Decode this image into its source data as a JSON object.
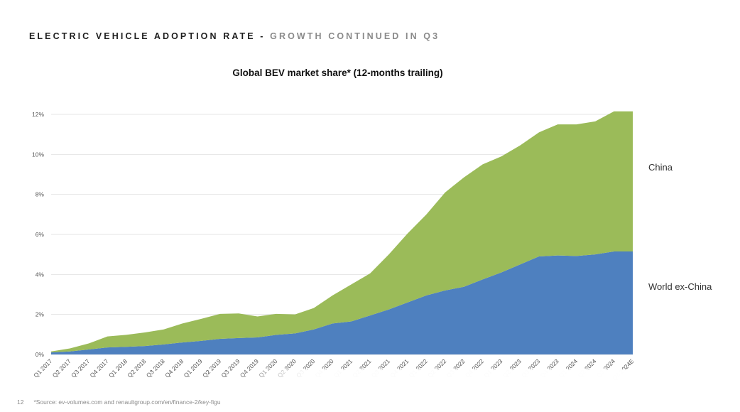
{
  "header": {
    "main": "ELECTRIC VEHICLE ADOPTION RATE - ",
    "sub": "GROWTH CONTINUED IN Q3"
  },
  "footer": {
    "page_number": "12",
    "source": "*Source: ev-volumes.com and renaultgroup.com/en/finance-2/key-figu"
  },
  "chart_data": {
    "type": "area",
    "stacked": true,
    "title": "Global BEV market share* (12-months trailing)",
    "xlabel": "",
    "ylabel": "",
    "ylim": [
      0,
      12
    ],
    "yticks": [
      0,
      2,
      4,
      6,
      8,
      10,
      12
    ],
    "ytick_labels": [
      "0%",
      "2%",
      "4%",
      "6%",
      "8%",
      "10%",
      "12%"
    ],
    "grid": true,
    "legend": "inline-right",
    "x": [
      "Q1 2017",
      "Q2 2017",
      "Q3 2017",
      "Q4 2017",
      "Q1 2018",
      "Q2 2018",
      "Q3 2018",
      "Q4 2018",
      "Q1 2019",
      "Q2 2019",
      "Q3 2019",
      "Q4 2019",
      "Q1 2020",
      "Q2 2020",
      "Q3 2020",
      "Q4 2020",
      "Q1 2021",
      "Q2 2021",
      "Q3 2021",
      "Q4 2021",
      "Q1 2022",
      "Q2 2022",
      "Q3 2022",
      "Q4 2022",
      "Q1 2023",
      "Q2 2023",
      "Q3 2023",
      "Q4 2023",
      "Q1 2024",
      "Q2 2024",
      "Q3 2024",
      "Q4 2024E"
    ],
    "x_tick_labels": [
      "Q1 2017",
      "Q2 2017",
      "Q3 2017",
      "Q4 2017",
      "Q1 2018",
      "Q2 2018",
      "Q3 2018",
      "Q4 2018",
      "Q1 2019",
      "Q2 2019",
      "Q3 2019",
      "Q4 2019",
      "Q1 2020",
      "Q2 2020",
      "Q3 2020",
      "Q4 2020",
      "Q1 2021",
      "Q2 2021",
      "Q3 2021",
      "Q4 2021",
      "Q1 2022",
      "Q2 2022",
      "Q3 2022",
      "Q4 2022",
      "Q1 2023",
      "Q2 2023",
      "Q3 2023",
      "Q4 2023",
      "Q1 2024",
      "Q2 2024",
      "Q3 2024",
      "Q4 2024E"
    ],
    "series": [
      {
        "name": "World ex-China",
        "color": "#4e80bf",
        "values": [
          0.1,
          0.15,
          0.25,
          0.35,
          0.38,
          0.42,
          0.5,
          0.6,
          0.68,
          0.78,
          0.82,
          0.85,
          0.98,
          1.05,
          1.25,
          1.55,
          1.65,
          1.95,
          2.25,
          2.6,
          2.95,
          3.2,
          3.38,
          3.75,
          4.1,
          4.5,
          4.9,
          4.95,
          4.92,
          5.0,
          5.15,
          5.15
        ]
      },
      {
        "name": "China",
        "color": "#9bbb59",
        "values": [
          0.05,
          0.15,
          0.3,
          0.55,
          0.6,
          0.68,
          0.75,
          0.95,
          1.1,
          1.25,
          1.23,
          1.05,
          1.05,
          0.95,
          1.07,
          1.4,
          1.85,
          2.1,
          2.75,
          3.45,
          4.05,
          4.9,
          5.47,
          5.75,
          5.8,
          5.95,
          6.2,
          6.55,
          6.58,
          6.65,
          7.0,
          7.0
        ]
      }
    ]
  }
}
